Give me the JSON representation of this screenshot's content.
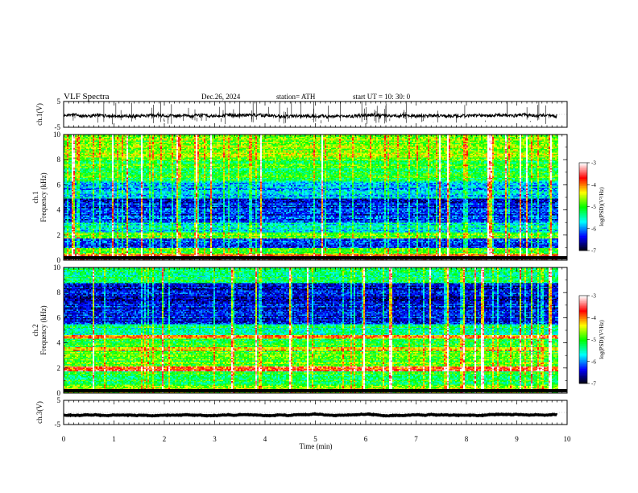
{
  "header": {
    "title": "VLF  Spectra",
    "date": "Dec.26, 2024",
    "station": "station= ATH",
    "start": "start  UT  =    10: 30: 0"
  },
  "chart_data": [
    {
      "type": "line",
      "name": "ch1-waveform",
      "ylabel": "ch.1(V)",
      "ylim": [
        -5,
        5
      ],
      "yticks": [
        "5",
        "-5"
      ],
      "xlim": [
        0,
        10
      ],
      "baseline": -0.5,
      "spread": 1.2
    },
    {
      "type": "heatmap",
      "name": "ch1-spectrogram",
      "ylabel_line1": "ch.1",
      "ylabel_line2": "Frequency (kHz)",
      "ylim": [
        0,
        10
      ],
      "yticks": [
        "0",
        "2",
        "4",
        "6",
        "8",
        "10"
      ],
      "xlim": [
        0,
        10
      ],
      "data_end_min": 9.8,
      "colorbar": {
        "label": "log(PSD)(V²/Hz)",
        "min": -7,
        "max": -3,
        "ticks": [
          "-3",
          "-4",
          "-5",
          "-6",
          "-7"
        ]
      },
      "bands": [
        {
          "from": 0.0,
          "to": 0.5,
          "level": -3.6
        },
        {
          "from": 0.5,
          "to": 1.0,
          "level": -4.9
        },
        {
          "from": 1.0,
          "to": 1.8,
          "level": -6.2
        },
        {
          "from": 1.8,
          "to": 2.3,
          "level": -4.8
        },
        {
          "from": 2.3,
          "to": 3.0,
          "level": -5.6
        },
        {
          "from": 3.0,
          "to": 5.0,
          "level": -6.3
        },
        {
          "from": 5.0,
          "to": 6.3,
          "level": -5.8
        },
        {
          "from": 6.3,
          "to": 8.0,
          "level": -5.1
        },
        {
          "from": 8.0,
          "to": 10.0,
          "level": -4.7
        }
      ]
    },
    {
      "type": "heatmap",
      "name": "ch2-spectrogram",
      "ylabel_line1": "ch.2",
      "ylabel_line2": "Frequency (kHz)",
      "ylim": [
        0,
        10
      ],
      "yticks": [
        "0",
        "2",
        "4",
        "6",
        "8",
        "10"
      ],
      "xlim": [
        0,
        10
      ],
      "data_end_min": 9.8,
      "colorbar": {
        "label": "log(PSD)(V²/Hz)",
        "min": -7,
        "max": -3,
        "ticks": [
          "-3",
          "-4",
          "-5",
          "-6",
          "-7"
        ]
      },
      "bands": [
        {
          "from": 0.0,
          "to": 0.6,
          "level": -4.6
        },
        {
          "from": 0.6,
          "to": 1.8,
          "level": -5.1
        },
        {
          "from": 1.8,
          "to": 2.2,
          "level": -3.7
        },
        {
          "from": 2.2,
          "to": 3.4,
          "level": -4.9
        },
        {
          "from": 3.4,
          "to": 3.7,
          "level": -4.2
        },
        {
          "from": 3.7,
          "to": 4.4,
          "level": -5.0
        },
        {
          "from": 4.4,
          "to": 4.7,
          "level": -3.9
        },
        {
          "from": 4.7,
          "to": 5.5,
          "level": -5.3
        },
        {
          "from": 5.5,
          "to": 8.8,
          "level": -6.4
        },
        {
          "from": 8.8,
          "to": 10.0,
          "level": -5.3
        }
      ]
    },
    {
      "type": "line",
      "name": "ch3-waveform",
      "ylabel": "ch.3(V)",
      "ylim": [
        -5,
        5
      ],
      "yticks": [
        "5",
        "-5"
      ],
      "xlim": [
        0,
        10
      ],
      "baseline": -1.0,
      "spread": 0.15
    }
  ],
  "xaxis": {
    "label": "Time  (min)",
    "ticks": [
      "0",
      "1",
      "2",
      "3",
      "4",
      "5",
      "6",
      "7",
      "8",
      "9",
      "10"
    ]
  },
  "colors": {
    "colormap": [
      "#000000",
      "#0000ff",
      "#00ffff",
      "#00ff00",
      "#ffff00",
      "#ff0000",
      "#ffffff"
    ]
  }
}
